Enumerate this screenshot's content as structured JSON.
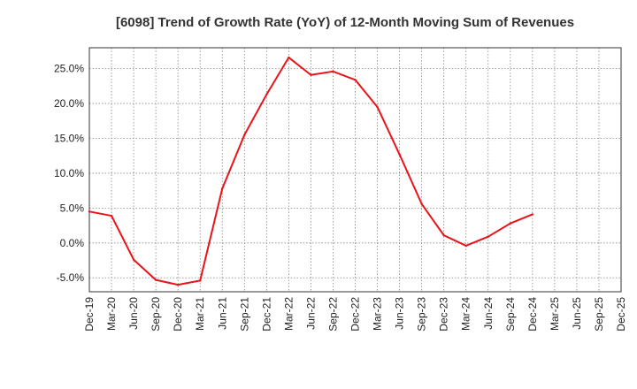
{
  "chart_data": {
    "type": "line",
    "title": "[6098]  Trend of Growth Rate (YoY) of 12-Month Moving Sum of Revenues",
    "xlabel": "",
    "ylabel": "",
    "x_tick_labels": [
      "Dec-19",
      "Mar-20",
      "Jun-20",
      "Sep-20",
      "Dec-20",
      "Mar-21",
      "Jun-21",
      "Sep-21",
      "Dec-21",
      "Mar-22",
      "Jun-22",
      "Sep-22",
      "Dec-22",
      "Mar-23",
      "Jun-23",
      "Sep-23",
      "Dec-23",
      "Mar-24",
      "Jun-24",
      "Sep-24",
      "Dec-24",
      "Mar-25",
      "Jun-25",
      "Sep-25",
      "Dec-25"
    ],
    "y_tick_labels": [
      "-5.0%",
      "0.0%",
      "5.0%",
      "10.0%",
      "15.0%",
      "20.0%",
      "25.0%"
    ],
    "y_ticks": [
      -5,
      0,
      5,
      10,
      15,
      20,
      25
    ],
    "ylim": [
      -7,
      28
    ],
    "grid": true,
    "legend": "none",
    "line_color": "#e8141a",
    "series": [
      {
        "values": [
          4.5,
          3.9,
          -2.4,
          -5.3,
          -6.0,
          -5.4,
          7.8,
          15.5,
          21.3,
          26.6,
          24.1,
          24.6,
          23.4,
          19.5,
          12.7,
          5.6,
          1.1,
          -0.4,
          0.9,
          2.8,
          4.1
        ]
      }
    ]
  }
}
